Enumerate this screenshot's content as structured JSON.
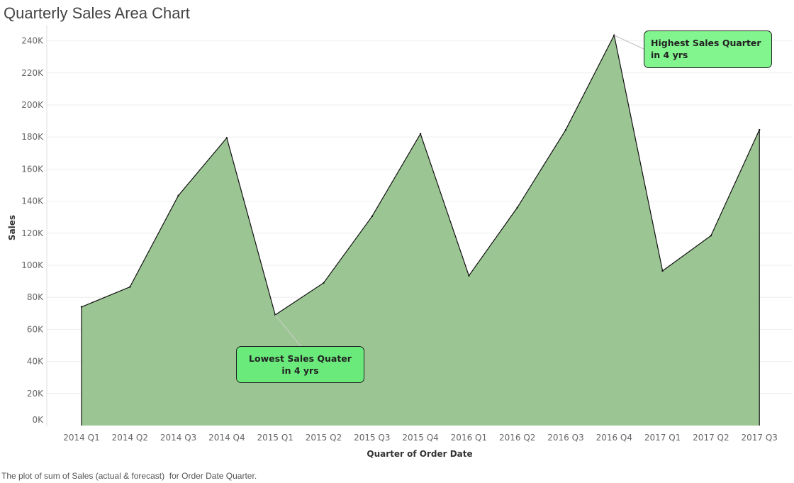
{
  "title": "Quarterly Sales Area Chart",
  "caption": "The plot of sum of Sales (actual & forecast)  for Order Date Quarter.",
  "colors": {
    "area_fill": "#9bc693",
    "area_stroke": "#111111",
    "annotation_high_bg": "#82f58f",
    "annotation_low_bg": "#6bea7c",
    "gridline": "#eeeeee"
  },
  "chart_data": {
    "type": "area",
    "title": "Quarterly Sales Area Chart",
    "xlabel": "Quarter of Order Date",
    "ylabel": "Sales",
    "categories": [
      "2014 Q1",
      "2014 Q2",
      "2014 Q3",
      "2014 Q4",
      "2015 Q1",
      "2015 Q2",
      "2015 Q3",
      "2015 Q4",
      "2016 Q1",
      "2016 Q2",
      "2016 Q3",
      "2016 Q4",
      "2017 Q1",
      "2017 Q2",
      "2017 Q3"
    ],
    "values": [
      74000,
      86500,
      143500,
      179500,
      69000,
      89000,
      130500,
      182000,
      93500,
      136000,
      184500,
      243500,
      96500,
      118500,
      184500
    ],
    "ylim": [
      0,
      250000
    ],
    "y_ticks": [
      "0K",
      "20K",
      "40K",
      "60K",
      "80K",
      "100K",
      "120K",
      "140K",
      "160K",
      "180K",
      "200K",
      "220K",
      "240K"
    ],
    "y_tick_values": [
      0,
      20000,
      40000,
      60000,
      80000,
      100000,
      120000,
      140000,
      160000,
      180000,
      200000,
      220000,
      240000
    ],
    "grid": true,
    "annotations": [
      {
        "text": "Highest Sales Quarter in 4 yrs",
        "category": "2016 Q4"
      },
      {
        "text": "Lowest Sales Quater in 4 yrs",
        "category": "2015 Q1"
      }
    ]
  }
}
